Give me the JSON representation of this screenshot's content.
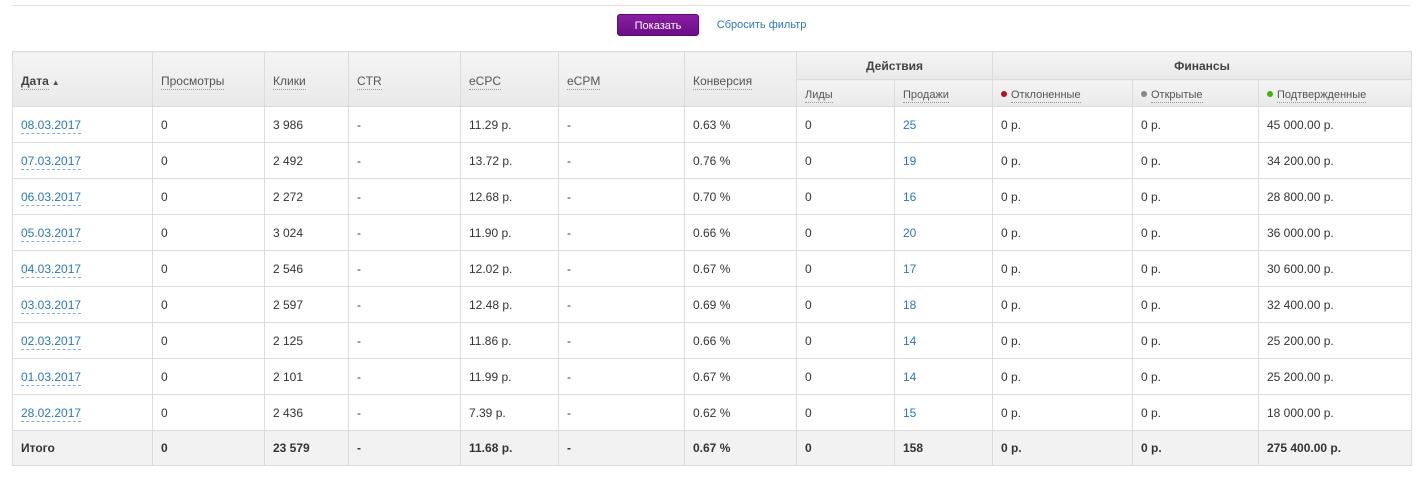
{
  "filter": {
    "show_label": "Показать",
    "reset_label": "Сбросить фильтр"
  },
  "colors": {
    "primary_button": "#7a1496",
    "link": "#2a78b8",
    "rejected": "#b0141a",
    "open": "#888888",
    "confirmed": "#44b310"
  },
  "header": {
    "date": "Дата",
    "views": "Просмотры",
    "clicks": "Клики",
    "ctr": "CTR",
    "ecpc": "eCPC",
    "ecpm": "eCPM",
    "conversion": "Конверсия",
    "actions_group": "Действия",
    "finance_group": "Финансы",
    "leads": "Лиды",
    "sales": "Продажи",
    "rejected": "Отклоненные",
    "open": "Открытые",
    "confirmed": "Подтвержденные",
    "sort_indicator": "ascending"
  },
  "rows": [
    {
      "date": "08.03.2017",
      "views": "0",
      "clicks": "3 986",
      "ctr": "-",
      "ecpc": "11.29 р.",
      "ecpm": "-",
      "conversion": "0.63 %",
      "leads": "0",
      "sales": "25",
      "rejected": "0 р.",
      "open": "0 р.",
      "confirmed": "45 000.00 р."
    },
    {
      "date": "07.03.2017",
      "views": "0",
      "clicks": "2 492",
      "ctr": "-",
      "ecpc": "13.72 р.",
      "ecpm": "-",
      "conversion": "0.76 %",
      "leads": "0",
      "sales": "19",
      "rejected": "0 р.",
      "open": "0 р.",
      "confirmed": "34 200.00 р."
    },
    {
      "date": "06.03.2017",
      "views": "0",
      "clicks": "2 272",
      "ctr": "-",
      "ecpc": "12.68 р.",
      "ecpm": "-",
      "conversion": "0.70 %",
      "leads": "0",
      "sales": "16",
      "rejected": "0 р.",
      "open": "0 р.",
      "confirmed": "28 800.00 р."
    },
    {
      "date": "05.03.2017",
      "views": "0",
      "clicks": "3 024",
      "ctr": "-",
      "ecpc": "11.90 р.",
      "ecpm": "-",
      "conversion": "0.66 %",
      "leads": "0",
      "sales": "20",
      "rejected": "0 р.",
      "open": "0 р.",
      "confirmed": "36 000.00 р."
    },
    {
      "date": "04.03.2017",
      "views": "0",
      "clicks": "2 546",
      "ctr": "-",
      "ecpc": "12.02 р.",
      "ecpm": "-",
      "conversion": "0.67 %",
      "leads": "0",
      "sales": "17",
      "rejected": "0 р.",
      "open": "0 р.",
      "confirmed": "30 600.00 р."
    },
    {
      "date": "03.03.2017",
      "views": "0",
      "clicks": "2 597",
      "ctr": "-",
      "ecpc": "12.48 р.",
      "ecpm": "-",
      "conversion": "0.69 %",
      "leads": "0",
      "sales": "18",
      "rejected": "0 р.",
      "open": "0 р.",
      "confirmed": "32 400.00 р."
    },
    {
      "date": "02.03.2017",
      "views": "0",
      "clicks": "2 125",
      "ctr": "-",
      "ecpc": "11.86 р.",
      "ecpm": "-",
      "conversion": "0.66 %",
      "leads": "0",
      "sales": "14",
      "rejected": "0 р.",
      "open": "0 р.",
      "confirmed": "25 200.00 р."
    },
    {
      "date": "01.03.2017",
      "views": "0",
      "clicks": "2 101",
      "ctr": "-",
      "ecpc": "11.99 р.",
      "ecpm": "-",
      "conversion": "0.67 %",
      "leads": "0",
      "sales": "14",
      "rejected": "0 р.",
      "open": "0 р.",
      "confirmed": "25 200.00 р."
    },
    {
      "date": "28.02.2017",
      "views": "0",
      "clicks": "2 436",
      "ctr": "-",
      "ecpc": "7.39 р.",
      "ecpm": "-",
      "conversion": "0.62 %",
      "leads": "0",
      "sales": "15",
      "rejected": "0 р.",
      "open": "0 р.",
      "confirmed": "18 000.00 р."
    }
  ],
  "total": {
    "label": "Итого",
    "views": "0",
    "clicks": "23 579",
    "ctr": "-",
    "ecpc": "11.68 р.",
    "ecpm": "-",
    "conversion": "0.67 %",
    "leads": "0",
    "sales": "158",
    "rejected": "0 р.",
    "open": "0 р.",
    "confirmed": "275 400.00 р."
  }
}
